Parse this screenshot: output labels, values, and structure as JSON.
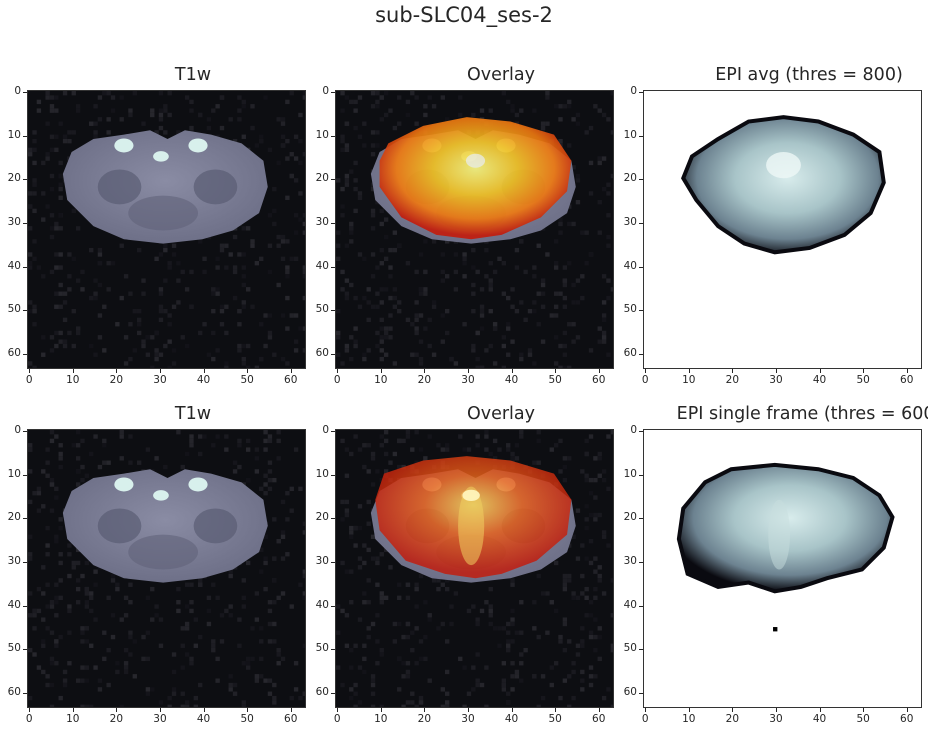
{
  "figure": {
    "title": "sub-SLC04_ses-2"
  },
  "axis_ticks": {
    "x": [
      "0",
      "10",
      "20",
      "30",
      "40",
      "50",
      "60"
    ],
    "y": [
      "0",
      "10",
      "20",
      "30",
      "40",
      "50",
      "60"
    ]
  },
  "panels": [
    {
      "title": "T1w",
      "kind": "t1w"
    },
    {
      "title": "Overlay",
      "kind": "overlay_avg"
    },
    {
      "title": "EPI avg (thres = 800)",
      "kind": "epi_avg"
    },
    {
      "title": "T1w",
      "kind": "t1w"
    },
    {
      "title": "Overlay",
      "kind": "overlay_single"
    },
    {
      "title": "EPI single frame (thres = 600)",
      "kind": "epi_single"
    }
  ],
  "colors": {
    "t1w_background": "#0d0e12",
    "t1w_tissue": "#7d7f96",
    "t1w_bright": "#d8f0ec",
    "overlay_hot_edge": "#c41a0a",
    "overlay_hot_mid": "#f07a10",
    "overlay_hot_core": "#f4f27a",
    "epi_dark": "#0a0a10",
    "epi_mid": "#6c8290",
    "epi_light": "#d8ecec"
  }
}
